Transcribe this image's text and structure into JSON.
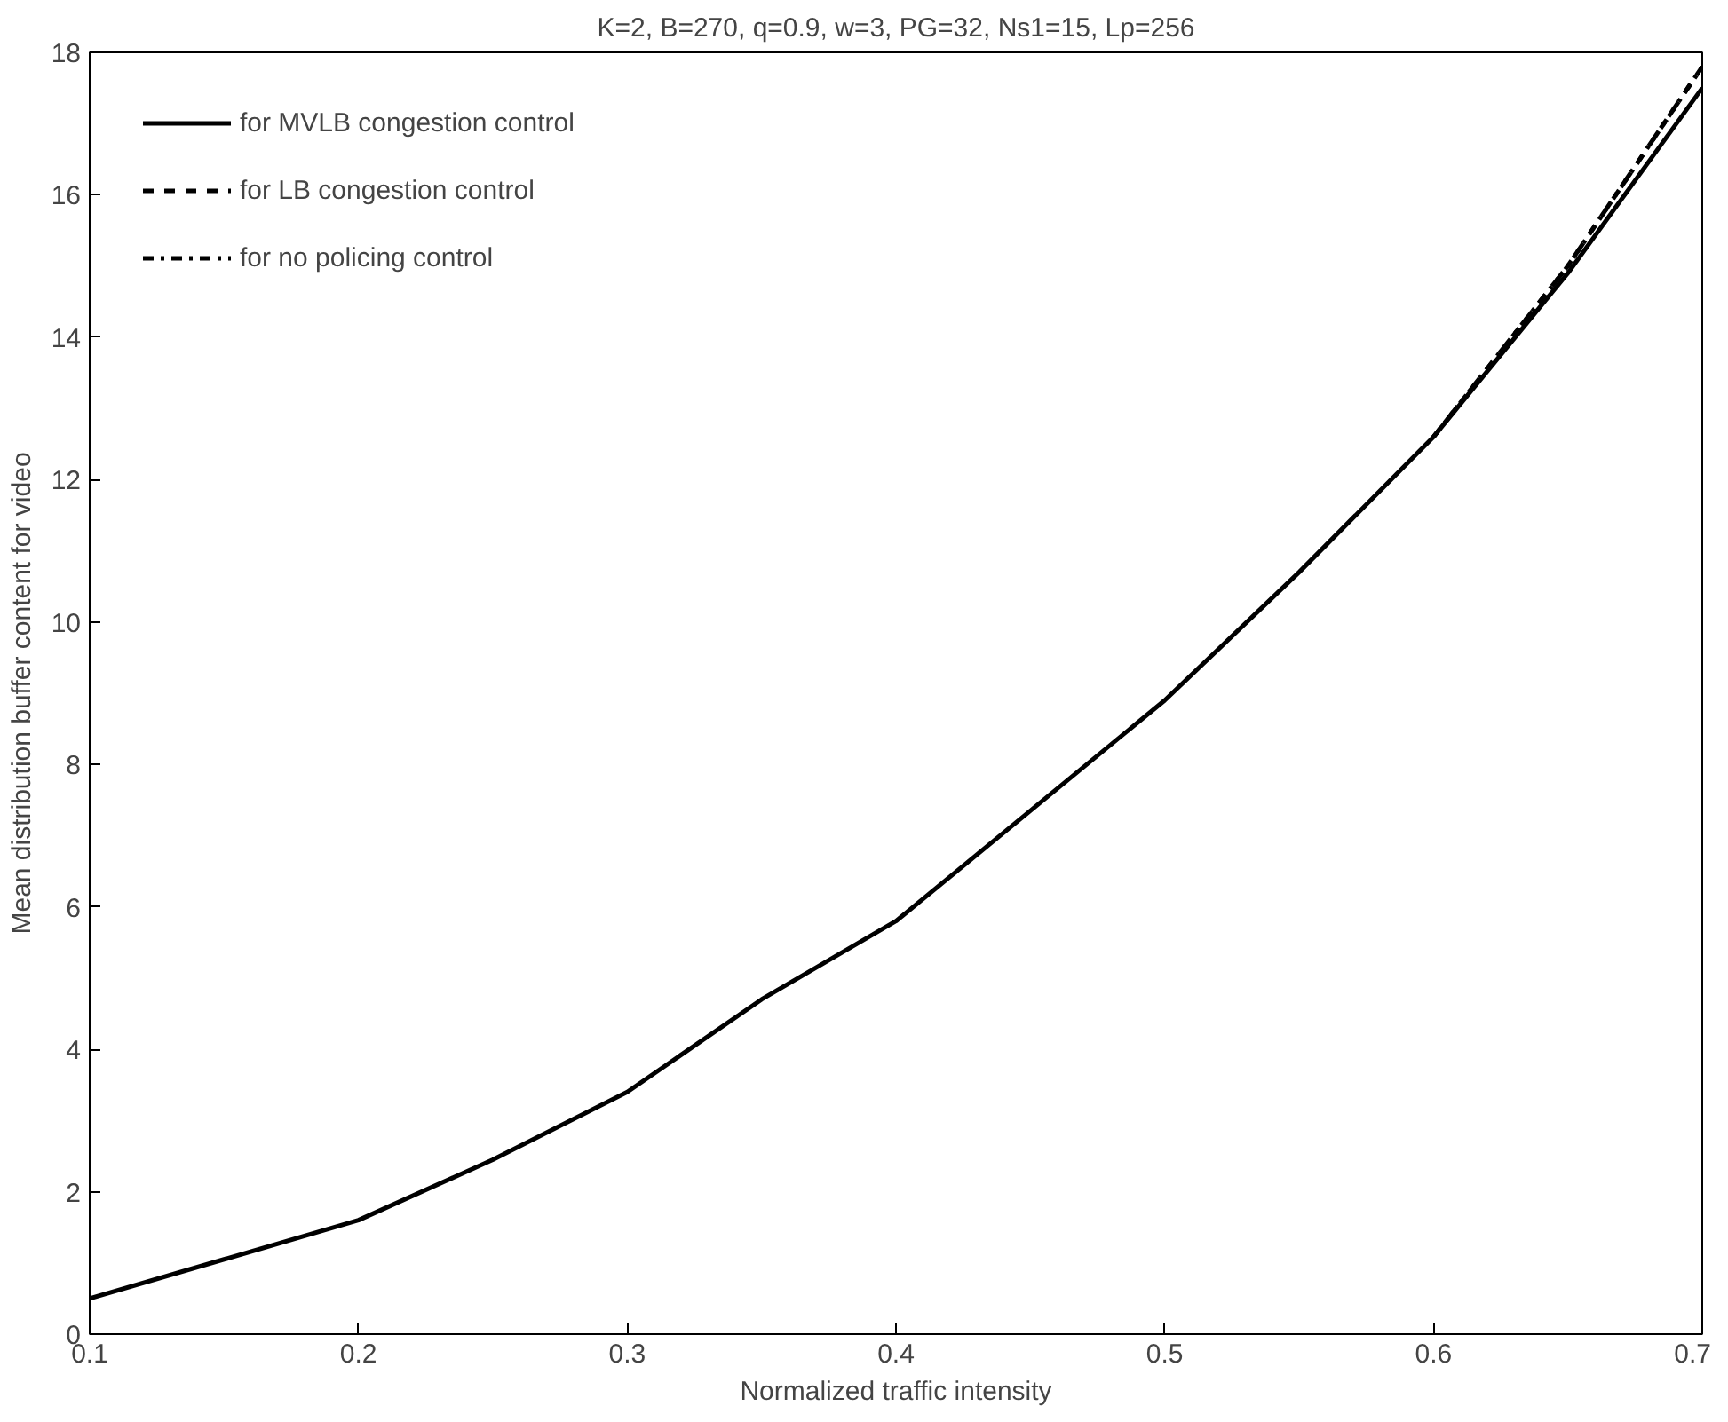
{
  "chart_data": {
    "type": "line",
    "title": "K=2, B=270, q=0.9, w=3, PG=32, Ns1=15, Lp=256",
    "xlabel": "Normalized traffic intensity",
    "ylabel": "Mean distribution buffer content for video",
    "x": [
      0.1,
      0.15,
      0.2,
      0.25,
      0.3,
      0.35,
      0.4,
      0.45,
      0.5,
      0.55,
      0.6,
      0.65,
      0.7
    ],
    "series": [
      {
        "name": "for MVLB congestion control",
        "color": "#000000",
        "line_style": "solid",
        "values": [
          0.5,
          1.05,
          1.6,
          2.45,
          3.4,
          4.7,
          5.8,
          7.35,
          8.9,
          10.7,
          12.6,
          14.9,
          17.5
        ]
      },
      {
        "name": "for LB congestion control",
        "color": "#000000",
        "line_style": "dashed",
        "values": [
          null,
          null,
          null,
          null,
          null,
          null,
          null,
          null,
          null,
          null,
          12.6,
          15.0,
          17.8
        ]
      },
      {
        "name": "for no policing control",
        "color": "#000000",
        "line_style": "dashdot",
        "values": [
          null,
          null,
          null,
          null,
          null,
          null,
          null,
          null,
          null,
          null,
          12.6,
          15.0,
          17.8
        ]
      }
    ],
    "xlim": [
      0.1,
      0.7
    ],
    "xticks": [
      0.1,
      0.2,
      0.3,
      0.4,
      0.5,
      0.6,
      0.7
    ],
    "ylim": [
      0,
      18
    ],
    "yticks": [
      0,
      2,
      4,
      6,
      8,
      10,
      12,
      14,
      16,
      18
    ],
    "grid": false,
    "legend": "top left"
  }
}
